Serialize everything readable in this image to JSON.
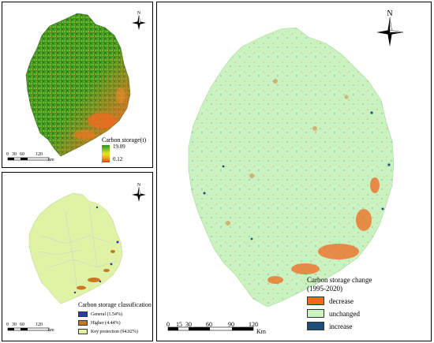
{
  "panel_a": {
    "legend_title": "Carbon storage(t)",
    "legend_max": "19.09",
    "legend_min": "0.12",
    "gradient_colors": [
      "#2d8f1c",
      "#7fbf2a",
      "#e6e62a",
      "#f0a020",
      "#e03c1e"
    ],
    "north_label": "N",
    "scale_labels": [
      "0",
      "30",
      "60",
      "120"
    ],
    "scale_unit": "km"
  },
  "panel_b": {
    "legend_title": "Carbon storage classification",
    "classes": [
      {
        "label": "General (1.54%)",
        "color": "#2b3aa8"
      },
      {
        "label": "Higher (4.44%)",
        "color": "#c87820"
      },
      {
        "label": "Key protection (94.02%)",
        "color": "#dff2a6"
      }
    ],
    "north_label": "N",
    "scale_labels": [
      "0",
      "30",
      "60",
      "120"
    ],
    "scale_unit": "km"
  },
  "panel_c": {
    "legend_title_line1": "Carbon storage change",
    "legend_title_line2": "(1995-2020)",
    "classes": [
      {
        "label": "decrease",
        "color": "#f06a1e"
      },
      {
        "label": "unchanged",
        "color": "#c9f2c0"
      },
      {
        "label": "increase",
        "color": "#1d4e7a"
      }
    ],
    "north_label": "N",
    "scale_labels": [
      "0",
      "15",
      "30",
      "60",
      "90",
      "120"
    ],
    "scale_unit": "Km"
  }
}
